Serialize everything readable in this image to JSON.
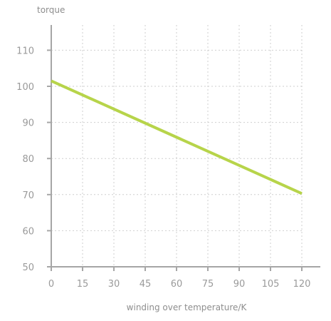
{
  "chart_data": {
    "type": "line",
    "title": "",
    "xlabel": "winding over temperature/K",
    "ylabel": "torque",
    "xlim": [
      0,
      120
    ],
    "ylim": [
      50,
      116
    ],
    "x_ticks": [
      0,
      15,
      30,
      45,
      60,
      75,
      90,
      105,
      120
    ],
    "y_ticks": [
      50,
      60,
      70,
      80,
      90,
      100,
      110
    ],
    "grid": true,
    "legend": "none",
    "series": [
      {
        "x": [
          0,
          120
        ],
        "y": [
          101.5,
          70.3
        ],
        "color": "#b7d44a"
      }
    ],
    "colors": {
      "axis": "#a6a6a6",
      "grid": "#cfcfcf",
      "tick_label": "#9a9a9a",
      "axis_title": "#8e8e8e"
    }
  }
}
